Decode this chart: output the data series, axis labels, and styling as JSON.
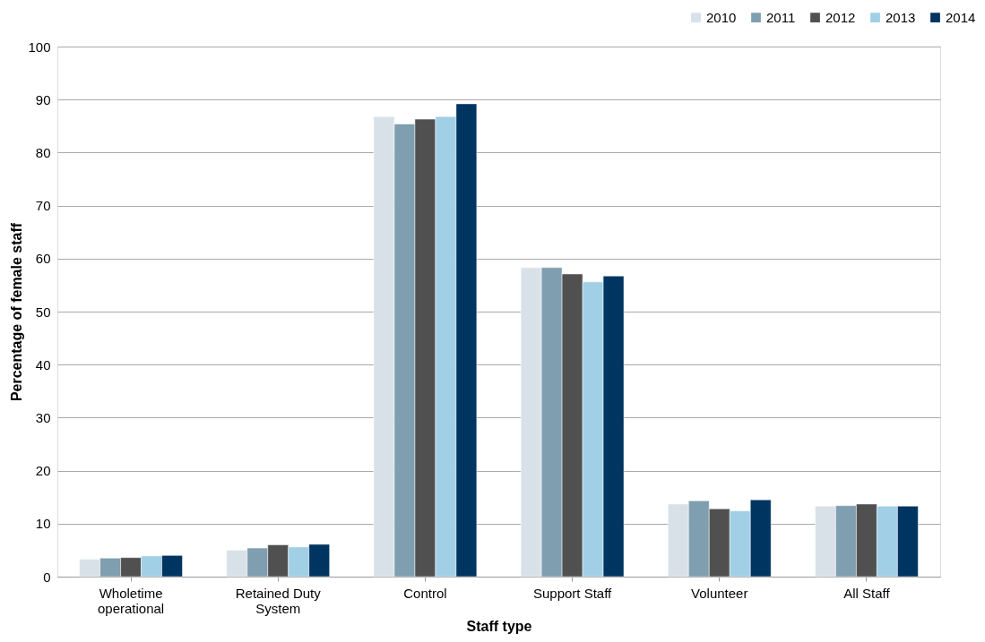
{
  "chart_data": {
    "type": "bar",
    "xlabel": "Staff type",
    "ylabel": "Percentage of  female staff",
    "categories": [
      "Wholetime operational",
      "Retained Duty System",
      "Control",
      "Support Staff",
      "Volunteer",
      "All Staff"
    ],
    "series": [
      {
        "name": "2010",
        "color": "#d9e1e8",
        "values": [
          3.3,
          5.0,
          86.8,
          58.3,
          13.7,
          13.3
        ]
      },
      {
        "name": "2011",
        "color": "#7f9fb0",
        "values": [
          3.5,
          5.4,
          85.4,
          58.3,
          14.3,
          13.4
        ]
      },
      {
        "name": "2012",
        "color": "#505050",
        "values": [
          3.6,
          6.0,
          86.3,
          57.1,
          12.8,
          13.7
        ]
      },
      {
        "name": "2013",
        "color": "#a1cfe6",
        "values": [
          3.9,
          5.6,
          86.8,
          55.6,
          12.4,
          13.3
        ]
      },
      {
        "name": "2014",
        "color": "#003461",
        "values": [
          4.0,
          6.1,
          89.2,
          56.7,
          14.5,
          13.3
        ]
      }
    ],
    "ylim": [
      0,
      100
    ],
    "yticks": [
      0,
      10,
      20,
      30,
      40,
      50,
      60,
      70,
      80,
      90,
      100
    ],
    "grid": "y",
    "legend": "top right"
  }
}
